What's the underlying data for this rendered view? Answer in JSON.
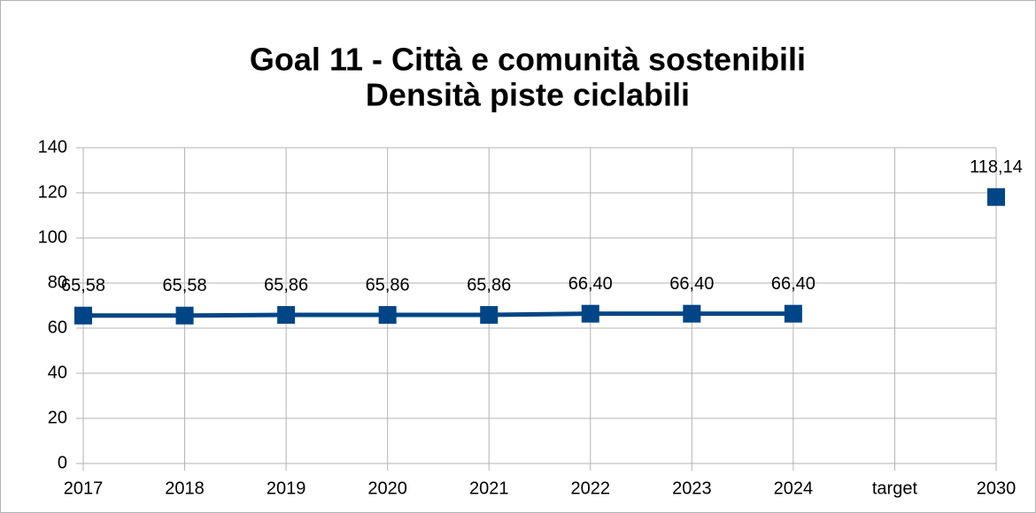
{
  "chart_data": {
    "type": "line",
    "title": [
      "Goal 11 - Città e comunità sostenibili",
      "Densità piste ciclabili"
    ],
    "categories": [
      "2017",
      "2018",
      "2019",
      "2020",
      "2021",
      "2022",
      "2023",
      "2024",
      "target",
      "2030"
    ],
    "values": [
      65.58,
      65.58,
      65.86,
      65.86,
      65.86,
      66.4,
      66.4,
      66.4,
      null,
      118.14
    ],
    "value_labels": [
      "65,58",
      "65,58",
      "65,86",
      "65,86",
      "65,86",
      "66,40",
      "66,40",
      "66,40",
      null,
      "118,14"
    ],
    "color": "#004586",
    "ylim": [
      0,
      140
    ],
    "yticks": [
      0,
      20,
      40,
      60,
      80,
      100,
      120,
      140
    ],
    "grid": true
  }
}
